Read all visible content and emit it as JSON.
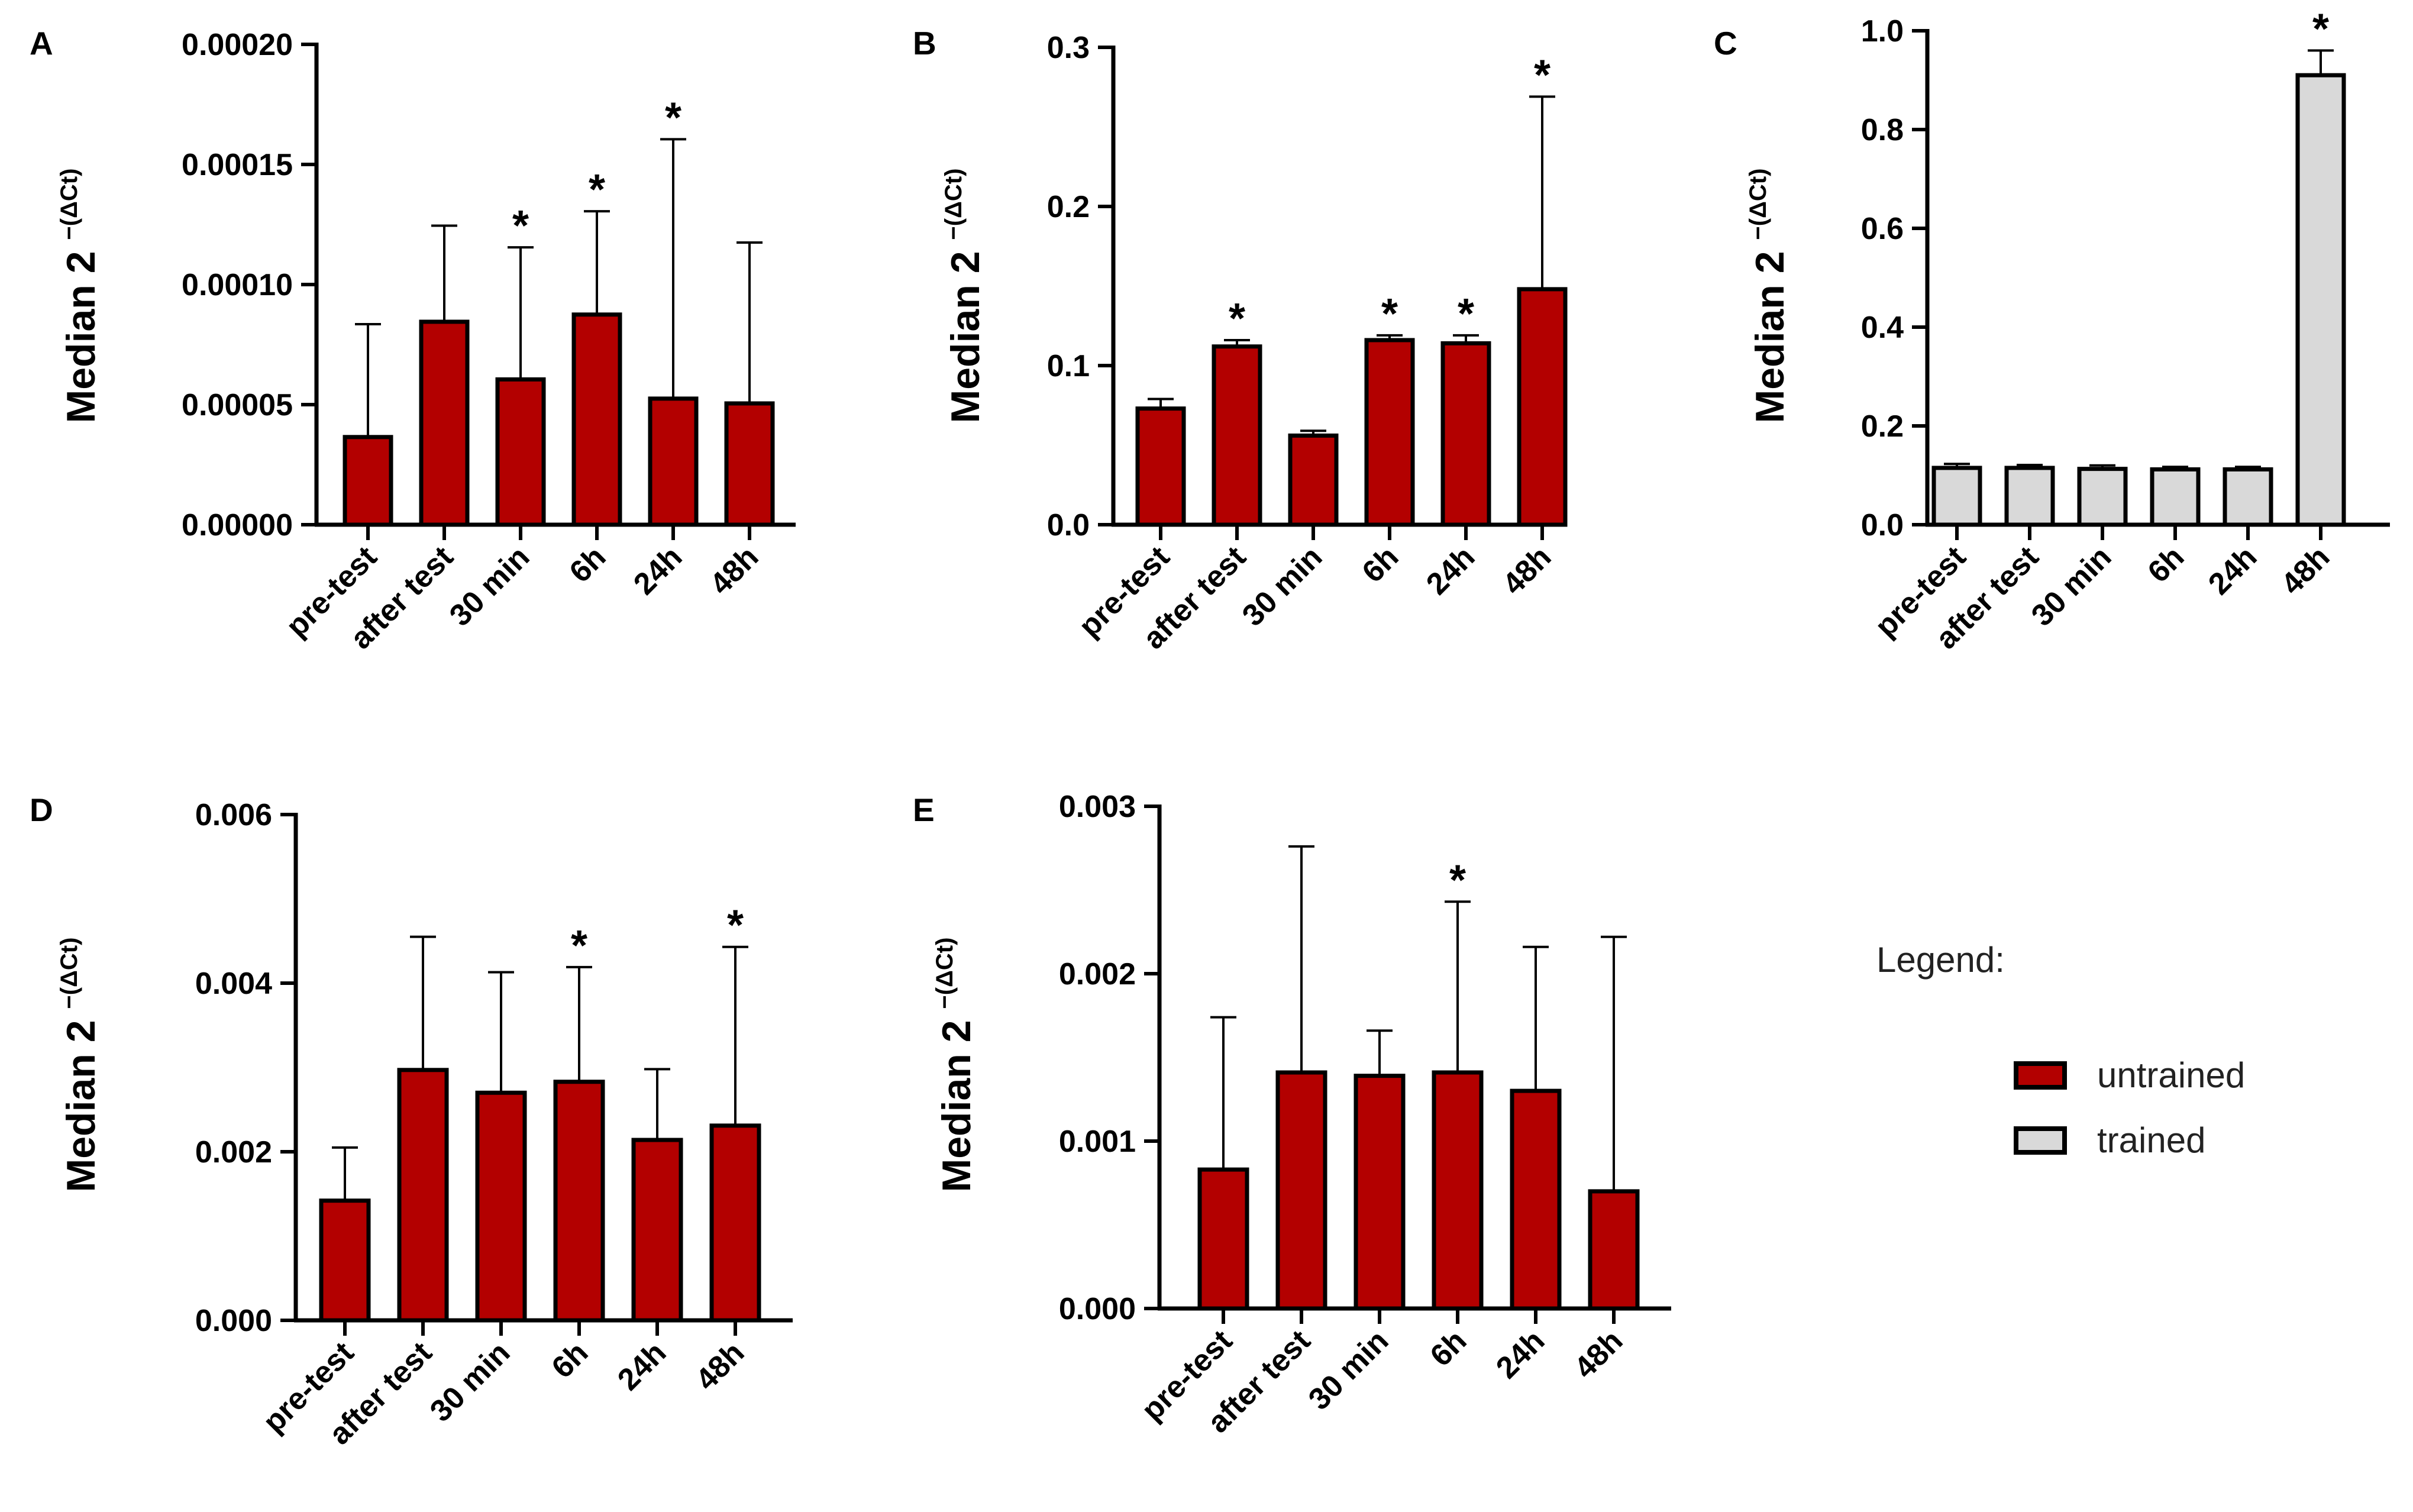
{
  "colors": {
    "untrained": "#b30000",
    "trained": "#d9d9d9",
    "stroke": "#000000"
  },
  "legend": {
    "title": "Legend:",
    "items": [
      {
        "label": "untrained",
        "color": "#b30000"
      },
      {
        "label": "trained",
        "color": "#d9d9d9"
      }
    ]
  },
  "chart_data": [
    {
      "panel": "A",
      "type": "bar",
      "group": "untrained",
      "categories": [
        "pre-test",
        "after test",
        "30 min",
        "6h",
        "24h",
        "48h"
      ],
      "values": [
        3.65e-05,
        8.45e-05,
        6.05e-05,
        8.75e-05,
        5.25e-05,
        5.05e-05
      ],
      "error_upper": [
        8.35e-05,
        0.0001245,
        0.0001155,
        0.0001305,
        0.0001605,
        0.0001175
      ],
      "significant": [
        false,
        false,
        true,
        true,
        true,
        false
      ],
      "ylim": [
        0,
        0.0002
      ],
      "yticks": [
        0,
        5e-05,
        0.0001,
        0.00015,
        0.0002
      ],
      "ytick_labels": [
        "0.00000",
        "0.00005",
        "0.00010",
        "0.00015",
        "0.00020"
      ],
      "ylabel": "Median 2",
      "ylabel_sup": "−(ΔCt)",
      "star_symbol": "*"
    },
    {
      "panel": "B",
      "type": "bar",
      "group": "untrained",
      "categories": [
        "pre-test",
        "after test",
        "30 min",
        "6h",
        "24h",
        "48h"
      ],
      "values": [
        0.073,
        0.112,
        0.056,
        0.116,
        0.114,
        0.148
      ],
      "error_upper": [
        0.079,
        0.116,
        0.059,
        0.119,
        0.119,
        0.269
      ],
      "significant": [
        false,
        true,
        false,
        true,
        true,
        true
      ],
      "ylim": [
        0,
        0.3
      ],
      "yticks": [
        0,
        0.1,
        0.2,
        0.3
      ],
      "ytick_labels": [
        "0.0",
        "0.1",
        "0.2",
        "0.3"
      ],
      "ylabel": "Median 2",
      "ylabel_sup": "−(ΔCt)",
      "star_symbol": "*"
    },
    {
      "panel": "C",
      "type": "bar",
      "group": "trained",
      "categories": [
        "pre-test",
        "after test",
        "30 min",
        "6h",
        "24h",
        "48h"
      ],
      "values": [
        0.115,
        0.115,
        0.113,
        0.112,
        0.112,
        0.91
      ],
      "error_upper": [
        0.123,
        0.121,
        0.12,
        0.117,
        0.117,
        0.96
      ],
      "significant": [
        false,
        false,
        false,
        false,
        false,
        true
      ],
      "ylim": [
        0,
        1.0
      ],
      "yticks": [
        0,
        0.2,
        0.4,
        0.6,
        0.8,
        1.0
      ],
      "ytick_labels": [
        "0.0",
        "0.2",
        "0.4",
        "0.6",
        "0.8",
        "1.0"
      ],
      "ylabel": "Median 2",
      "ylabel_sup": "−(ΔCt)",
      "star_symbol": "*"
    },
    {
      "panel": "D",
      "type": "bar",
      "group": "untrained",
      "categories": [
        "pre-test",
        "after test",
        "30 min",
        "6h",
        "24h",
        "48h"
      ],
      "values": [
        0.00142,
        0.00297,
        0.0027,
        0.00283,
        0.00214,
        0.00231
      ],
      "error_upper": [
        0.00205,
        0.00455,
        0.00413,
        0.00419,
        0.00298,
        0.00443
      ],
      "significant": [
        false,
        false,
        false,
        true,
        false,
        true
      ],
      "ylim": [
        0,
        0.006
      ],
      "yticks": [
        0,
        0.002,
        0.004,
        0.006
      ],
      "ytick_labels": [
        "0.000",
        "0.002",
        "0.004",
        "0.006"
      ],
      "ylabel": "Median 2",
      "ylabel_sup": "−(ΔCt)",
      "star_symbol": "*"
    },
    {
      "panel": "E",
      "type": "bar",
      "group": "untrained",
      "categories": [
        "pre-test",
        "after test",
        "30 min",
        "6h",
        "24h",
        "48h"
      ],
      "values": [
        0.00083,
        0.00141,
        0.00139,
        0.00141,
        0.0013,
        0.0007
      ],
      "error_upper": [
        0.00174,
        0.00276,
        0.00166,
        0.00243,
        0.00216,
        0.00222
      ],
      "significant": [
        false,
        false,
        false,
        true,
        false,
        false
      ],
      "ylim": [
        0,
        0.003
      ],
      "yticks": [
        0,
        0.001,
        0.002,
        0.003
      ],
      "ytick_labels": [
        "0.000",
        "0.001",
        "0.002",
        "0.003"
      ],
      "ylabel": "Median 2",
      "ylabel_sup": "−(ΔCt)",
      "star_symbol": "*"
    }
  ]
}
